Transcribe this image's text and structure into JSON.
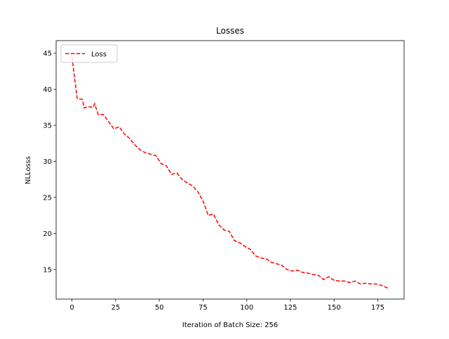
{
  "chart_data": {
    "type": "line",
    "title": "Losses",
    "xlabel": "Iteration of Batch Size: 256",
    "ylabel": "NLLosss",
    "x": [
      0,
      3,
      6,
      7,
      9,
      12,
      13,
      15,
      18,
      21,
      24,
      27,
      30,
      33,
      36,
      39,
      42,
      45,
      48,
      51,
      54,
      57,
      60,
      63,
      66,
      69,
      72,
      75,
      78,
      81,
      84,
      87,
      90,
      93,
      96,
      99,
      102,
      105,
      108,
      111,
      114,
      117,
      120,
      123,
      126,
      129,
      132,
      135,
      138,
      141,
      144,
      147,
      150,
      153,
      156,
      159,
      162,
      165,
      168,
      171,
      174,
      177,
      180,
      181
    ],
    "series": [
      {
        "name": "Loss",
        "color": "#ff0000",
        "values": [
          44.5,
          38.7,
          38.6,
          37.4,
          37.6,
          37.5,
          38,
          36.5,
          36.5,
          35.5,
          34.5,
          34.8,
          33.8,
          33.2,
          32.3,
          31.6,
          31.2,
          31,
          30.8,
          29.7,
          29.4,
          28.2,
          28.4,
          27.5,
          27,
          26.6,
          25.8,
          24.5,
          22.5,
          22.7,
          21.2,
          20.5,
          20.3,
          19,
          18.7,
          18.2,
          17.8,
          16.9,
          16.6,
          16.5,
          16,
          15.8,
          15.6,
          15,
          14.8,
          14.9,
          14.6,
          14.5,
          14.3,
          14.2,
          13.6,
          14,
          13.5,
          13.4,
          13.4,
          13.2,
          13.4,
          13,
          13.1,
          13,
          13,
          12.8,
          12.5,
          12.4
        ]
      }
    ],
    "xlim": [
      -9.05,
      190.05
    ],
    "ylim": [
      10.9,
      46.75
    ],
    "xticks": [
      0,
      25,
      50,
      75,
      100,
      125,
      150,
      175
    ],
    "yticks": [
      15,
      20,
      25,
      30,
      35,
      40,
      45
    ],
    "legend": "upper left",
    "grid": false
  }
}
